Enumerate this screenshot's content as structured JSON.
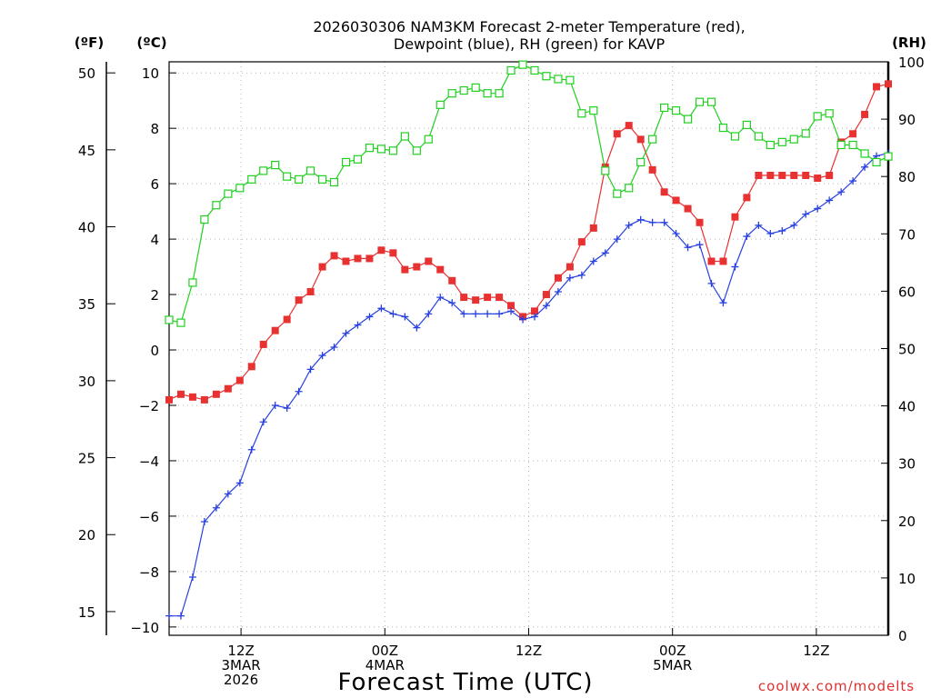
{
  "chart_data": {
    "type": "line",
    "title_lines": [
      "2026030306 NAM3KM Forecast 2-meter Temperature (red),",
      "Dewpoint (blue), RH (green) for KAVP"
    ],
    "xlabel": "Forecast Time (UTC)",
    "credit": "coolwx.com/modelts",
    "units": {
      "fahrenheit": "(ºF)",
      "celsius": "(ºC)",
      "rh": "(RH)"
    },
    "fahrenheit_ticks": [
      "15",
      "20",
      "25",
      "30",
      "35",
      "40",
      "45",
      "50"
    ],
    "celsius_ticks": [
      "-10",
      "-8",
      "-6",
      "-4",
      "-2",
      "0",
      "2",
      "4",
      "6",
      "8",
      "10"
    ],
    "rh_ticks": [
      "0",
      "10",
      "20",
      "30",
      "40",
      "50",
      "60",
      "70",
      "80",
      "90",
      "100"
    ],
    "celsius_range": [
      -10.3,
      10.4
    ],
    "fahrenheit_range": [
      13.46,
      50.72
    ],
    "rh_range": [
      0,
      100
    ],
    "x_range_hours": [
      0,
      60
    ],
    "x_ticks": [
      {
        "hour": 6,
        "lines": [
          "12Z",
          "3MAR",
          "2026"
        ]
      },
      {
        "hour": 18,
        "lines": [
          "00Z",
          "4MAR"
        ]
      },
      {
        "hour": 30,
        "lines": [
          "12Z"
        ]
      },
      {
        "hour": 42,
        "lines": [
          "00Z",
          "5MAR"
        ]
      },
      {
        "hour": 54,
        "lines": [
          "12Z"
        ]
      }
    ],
    "series": [
      {
        "name": "2-meter Temperature",
        "unit": "°C",
        "color": "#e83232",
        "marker": "filled-square",
        "values": [
          -1.8,
          -1.6,
          -1.7,
          -1.8,
          -1.6,
          -1.4,
          -1.1,
          -0.6,
          0.2,
          0.7,
          1.1,
          1.8,
          2.1,
          3.0,
          3.4,
          3.2,
          3.3,
          3.3,
          3.6,
          3.5,
          2.9,
          3.0,
          3.2,
          2.9,
          2.5,
          1.9,
          1.8,
          1.9,
          1.9,
          1.6,
          1.2,
          1.4,
          2.0,
          2.6,
          3.0,
          3.9,
          4.4,
          6.6,
          7.8,
          8.1,
          7.6,
          6.5,
          5.7,
          5.4,
          5.1,
          4.6,
          3.2,
          3.2,
          4.8,
          5.5,
          6.3,
          6.3,
          6.3,
          6.3,
          6.3,
          6.2,
          6.3,
          7.5,
          7.8,
          8.5,
          9.5,
          9.6
        ]
      },
      {
        "name": "Dewpoint",
        "unit": "°C",
        "color": "#2840e0",
        "marker": "plus",
        "values": [
          -9.6,
          -9.6,
          -8.2,
          -6.2,
          -5.7,
          -5.2,
          -4.8,
          -3.6,
          -2.6,
          -2.0,
          -2.1,
          -1.5,
          -0.7,
          -0.2,
          0.1,
          0.6,
          0.9,
          1.2,
          1.5,
          1.3,
          1.2,
          0.8,
          1.3,
          1.9,
          1.7,
          1.3,
          1.3,
          1.3,
          1.3,
          1.4,
          1.1,
          1.2,
          1.6,
          2.1,
          2.6,
          2.7,
          3.2,
          3.5,
          4.0,
          4.5,
          4.7,
          4.6,
          4.6,
          4.2,
          3.7,
          3.8,
          2.4,
          1.7,
          3.0,
          4.1,
          4.5,
          4.2,
          4.3,
          4.5,
          4.9,
          5.1,
          5.4,
          5.7,
          6.1,
          6.6,
          7.0,
          7.1
        ]
      },
      {
        "name": "RH",
        "unit": "%",
        "color": "#20d020",
        "marker": "open-square",
        "values": [
          55,
          54.5,
          61.5,
          72.5,
          75,
          77,
          78,
          79.5,
          81,
          82,
          80,
          79.5,
          81,
          79.5,
          79,
          82.5,
          83,
          85,
          84.8,
          84.5,
          87,
          84.5,
          86.5,
          92.5,
          94.5,
          95,
          95.5,
          94.5,
          94.5,
          98.5,
          99.5,
          98.5,
          97.5,
          97,
          96.8,
          91,
          91.5,
          81,
          77,
          78,
          82.5,
          86.5,
          92,
          91.5,
          90,
          93,
          93,
          88.5,
          87,
          89,
          87,
          85.5,
          86,
          86.5,
          87.5,
          90.5,
          91,
          85.5,
          85.5,
          84,
          82.5,
          83.5
        ]
      }
    ]
  }
}
